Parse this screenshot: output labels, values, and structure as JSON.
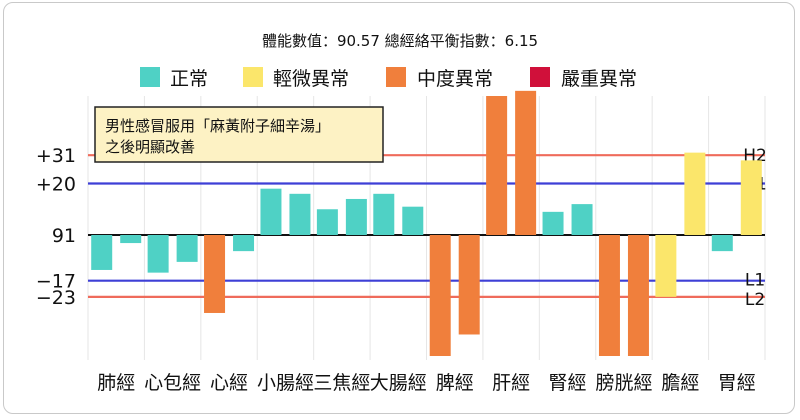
{
  "chart_data": {
    "type": "bar",
    "title": "體能數值：90.57 總經絡平衡指數：6.15",
    "legend": [
      {
        "label": "正常",
        "color": "#4fd1c5"
      },
      {
        "label": "輕微異常",
        "color": "#fbe66b"
      },
      {
        "label": "中度異常",
        "color": "#f07f3c"
      },
      {
        "label": "嚴重異常",
        "color": "#d0103a"
      }
    ],
    "baseline": 91,
    "y_ticks": [
      {
        "label": "+31",
        "value": 31
      },
      {
        "label": "+20",
        "value": 20
      },
      {
        "label": "91",
        "value": 0
      },
      {
        "label": "−17",
        "value": -17
      },
      {
        "label": "−23",
        "value": -23
      }
    ],
    "ylim": [
      -45,
      54
    ],
    "reference_lines": [
      {
        "label": "H2",
        "value": 31,
        "color": "#ef6b5b"
      },
      {
        "label": "H1",
        "value": 20,
        "color": "#3d3fd6"
      },
      {
        "label": "",
        "value": 0,
        "color": "#111111"
      },
      {
        "label": "L1",
        "value": -17,
        "color": "#3d3fd6"
      },
      {
        "label": "L2",
        "value": -23,
        "color": "#ef6b5b"
      }
    ],
    "categories": [
      "肺經",
      "心包經",
      "心經",
      "小腸經",
      "三焦經",
      "大腸經",
      "脾經",
      "肝經",
      "腎經",
      "膀胱經",
      "膽經",
      "胃經"
    ],
    "bars": [
      [
        {
          "value": -13,
          "level": "正常"
        },
        {
          "value": -3,
          "level": "正常"
        }
      ],
      [
        {
          "value": -14,
          "level": "正常"
        },
        {
          "value": -10,
          "level": "正常"
        }
      ],
      [
        {
          "value": -29,
          "level": "中度異常"
        },
        {
          "value": -6,
          "level": "正常"
        }
      ],
      [
        {
          "value": 18,
          "level": "正常"
        },
        {
          "value": 16,
          "level": "正常"
        }
      ],
      [
        {
          "value": 10,
          "level": "正常"
        },
        {
          "value": 14,
          "level": "正常"
        }
      ],
      [
        {
          "value": 16,
          "level": "正常"
        },
        {
          "value": 11,
          "level": "正常"
        }
      ],
      [
        {
          "value": -45,
          "level": "中度異常"
        },
        {
          "value": -37,
          "level": "中度異常"
        }
      ],
      [
        {
          "value": 54,
          "level": "中度異常"
        },
        {
          "value": 56,
          "level": "中度異常"
        }
      ],
      [
        {
          "value": 9,
          "level": "正常"
        },
        {
          "value": 12,
          "level": "正常"
        }
      ],
      [
        {
          "value": -48,
          "level": "中度異常"
        },
        {
          "value": -48,
          "level": "中度異常"
        }
      ],
      [
        {
          "value": -23,
          "level": "輕微異常"
        },
        {
          "value": 32,
          "level": "輕微異常"
        }
      ],
      [
        {
          "value": -6,
          "level": "正常"
        },
        {
          "value": 29,
          "level": "輕微異常"
        }
      ]
    ],
    "annotation": {
      "lines": [
        "男性感冒服用「麻黃附子細辛湯」",
        "之後明顯改善"
      ]
    },
    "grid": "vertical"
  }
}
